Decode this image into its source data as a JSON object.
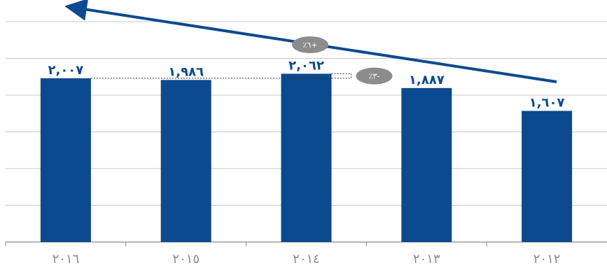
{
  "chart_data": {
    "type": "bar",
    "categories": [
      "٢٠١٦",
      "٢٠١٥",
      "٢٠١٤",
      "٢٠١٣",
      "٢٠١٢"
    ],
    "values": [
      2007,
      1986,
      2062,
      1887,
      1607
    ],
    "value_labels": [
      "٢,٠٠٧",
      "١,٩٨٦",
      "٢,٠٦٢",
      "١,٨٨٧",
      "١,٦٠٧"
    ],
    "ylim": [
      0,
      2700
    ],
    "grid": true,
    "annotations": [
      {
        "text": "٪٦+",
        "kind": "trend-arrow",
        "from": "٢٠١٢",
        "to": "٢٠١٦"
      },
      {
        "text": "٪٣-",
        "kind": "difference",
        "from": "٢٠١٤",
        "to": "٢٠١٦"
      }
    ],
    "colors": {
      "bar": "#0b4a8e",
      "badge": "#8c8c8c",
      "grid": "#c8c8c8",
      "tick": "#8c8c8c"
    }
  }
}
